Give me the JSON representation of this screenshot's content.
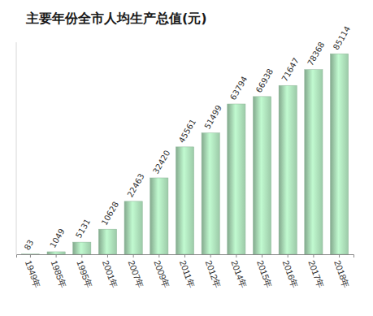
{
  "chart_data": {
    "type": "bar",
    "title": "主要年份全市人均生产总值(元)",
    "categories": [
      "1949年",
      "1985年",
      "1995年",
      "2001年",
      "2007年",
      "2009年",
      "2011年",
      "2012年",
      "2014年",
      "2015年",
      "2016年",
      "2017年",
      "2018年"
    ],
    "values": [
      83,
      1049,
      5131,
      10628,
      22463,
      32420,
      45561,
      51499,
      63794,
      66938,
      71647,
      78368,
      85114
    ],
    "color": "#9ccaa8",
    "ylim": [
      0,
      90000
    ],
    "data_labels": true,
    "tick_labels": "x",
    "grid": false
  }
}
